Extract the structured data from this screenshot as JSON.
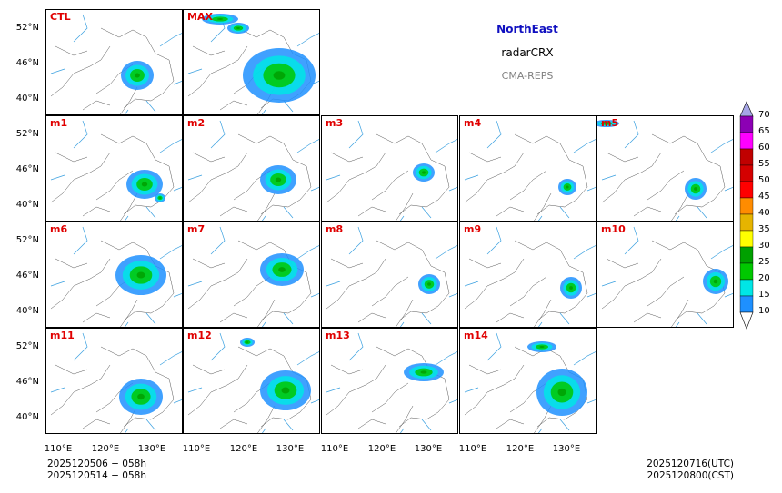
{
  "title": {
    "region": "NorthEast",
    "variable": "radarCRX",
    "model": "CMA-REPS"
  },
  "panels": [
    {
      "label": "CTL"
    },
    {
      "label": "MAX"
    },
    {
      "label": "m1"
    },
    {
      "label": "m2"
    },
    {
      "label": "m3"
    },
    {
      "label": "m4"
    },
    {
      "label": "m5"
    },
    {
      "label": "m6"
    },
    {
      "label": "m7"
    },
    {
      "label": "m8"
    },
    {
      "label": "m9"
    },
    {
      "label": "m10"
    },
    {
      "label": "m11"
    },
    {
      "label": "m12"
    },
    {
      "label": "m13"
    },
    {
      "label": "m14"
    }
  ],
  "axes": {
    "lat_ticks": [
      "52°N",
      "46°N",
      "40°N"
    ],
    "lon_ticks": [
      "110°E",
      "120°E",
      "130°E"
    ]
  },
  "colorbar": {
    "levels": [
      "70",
      "65",
      "60",
      "55",
      "50",
      "45",
      "40",
      "35",
      "30",
      "25",
      "20",
      "15",
      "10"
    ],
    "colors": [
      "#a6a6e6",
      "#8c00b4",
      "#ff00ff",
      "#c00000",
      "#d40000",
      "#ff0000",
      "#ff8c00",
      "#e6b400",
      "#ffff00",
      "#00a000",
      "#00c800",
      "#00e6e6",
      "#1e90ff"
    ]
  },
  "footer": {
    "init_line1": "2025120506  +  058h",
    "init_line2": "2025120514  +  058h",
    "valid_utc": "2025120716(UTC)",
    "valid_cst": "2025120800(CST)"
  }
}
